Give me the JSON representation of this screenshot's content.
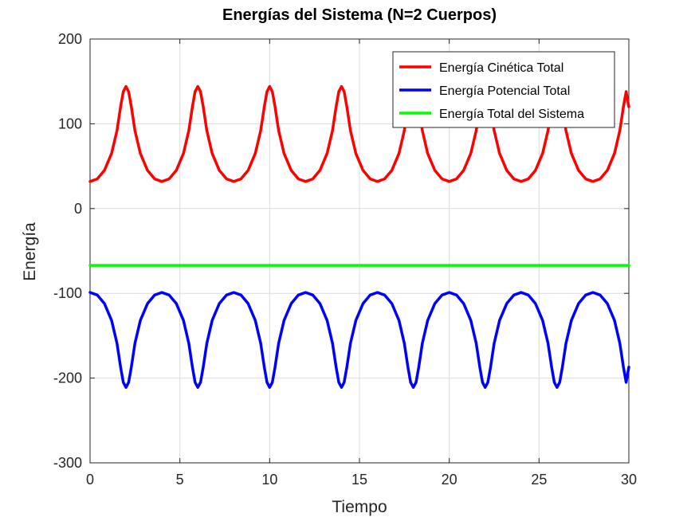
{
  "chart_data": {
    "type": "line",
    "title": "Energías del Sistema (N=2 Cuerpos)",
    "xlabel": "Tiempo",
    "ylabel": "Energía",
    "xlim": [
      0,
      30
    ],
    "ylim": [
      -300,
      200
    ],
    "xticks": [
      0,
      5,
      10,
      15,
      20,
      25,
      30
    ],
    "xtick_labels": [
      "0",
      "5",
      "10",
      "15",
      "20",
      "25",
      "30"
    ],
    "yticks": [
      -300,
      -200,
      -100,
      0,
      100,
      200
    ],
    "ytick_labels": [
      "-300",
      "-200",
      "-100",
      "0",
      "100",
      "200"
    ],
    "grid": true,
    "legend_position": "top-right",
    "series": [
      {
        "name": "Energía Cinética Total",
        "color": "#ff0000",
        "x": [
          0,
          0.4,
          0.8,
          1.2,
          1.5,
          1.7,
          1.85,
          2.0,
          2.15,
          2.3,
          2.5,
          2.8,
          3.2,
          3.6,
          4.0,
          4.4,
          4.8,
          5.2,
          5.5,
          5.7,
          5.85,
          6.0,
          6.15,
          6.3,
          6.5,
          6.8,
          7.2,
          7.6,
          8.0,
          8.4,
          8.8,
          9.2,
          9.5,
          9.7,
          9.85,
          10.0,
          10.15,
          10.3,
          10.5,
          10.8,
          11.2,
          11.6,
          12.0,
          12.4,
          12.8,
          13.2,
          13.5,
          13.7,
          13.85,
          14.0,
          14.15,
          14.3,
          14.5,
          14.8,
          15.2,
          15.6,
          16.0,
          16.4,
          16.8,
          17.2,
          17.5,
          17.7,
          17.85,
          18.0,
          18.15,
          18.3,
          18.5,
          18.8,
          19.2,
          19.6,
          20.0,
          20.4,
          20.8,
          21.2,
          21.5,
          21.7,
          21.85,
          22.0,
          22.15,
          22.3,
          22.5,
          22.8,
          23.2,
          23.6,
          24.0,
          24.4,
          24.8,
          25.2,
          25.5,
          25.7,
          25.85,
          26.0,
          26.15,
          26.3,
          26.5,
          26.8,
          27.2,
          27.6,
          28.0,
          28.4,
          28.8,
          29.2,
          29.5,
          29.7,
          29.85,
          30.0
        ],
        "y": [
          32,
          35,
          45,
          65,
          92,
          120,
          138,
          144,
          138,
          120,
          92,
          65,
          45,
          35,
          32,
          35,
          45,
          65,
          92,
          120,
          138,
          144,
          138,
          120,
          92,
          65,
          45,
          35,
          32,
          35,
          45,
          65,
          92,
          120,
          138,
          144,
          138,
          120,
          92,
          65,
          45,
          35,
          32,
          35,
          45,
          65,
          92,
          120,
          138,
          144,
          138,
          120,
          92,
          65,
          45,
          35,
          32,
          35,
          45,
          65,
          92,
          120,
          138,
          144,
          138,
          120,
          92,
          65,
          45,
          35,
          32,
          35,
          45,
          65,
          92,
          120,
          138,
          144,
          138,
          120,
          92,
          65,
          45,
          35,
          32,
          35,
          45,
          65,
          92,
          120,
          138,
          144,
          138,
          120,
          92,
          65,
          45,
          35,
          32,
          35,
          45,
          65,
          92,
          120,
          138,
          120
        ]
      },
      {
        "name": "Energía Potencial Total",
        "color": "#0000ff",
        "x": [
          0,
          0.4,
          0.8,
          1.2,
          1.5,
          1.7,
          1.85,
          2.0,
          2.15,
          2.3,
          2.5,
          2.8,
          3.2,
          3.6,
          4.0,
          4.4,
          4.8,
          5.2,
          5.5,
          5.7,
          5.85,
          6.0,
          6.15,
          6.3,
          6.5,
          6.8,
          7.2,
          7.6,
          8.0,
          8.4,
          8.8,
          9.2,
          9.5,
          9.7,
          9.85,
          10.0,
          10.15,
          10.3,
          10.5,
          10.8,
          11.2,
          11.6,
          12.0,
          12.4,
          12.8,
          13.2,
          13.5,
          13.7,
          13.85,
          14.0,
          14.15,
          14.3,
          14.5,
          14.8,
          15.2,
          15.6,
          16.0,
          16.4,
          16.8,
          17.2,
          17.5,
          17.7,
          17.85,
          18.0,
          18.15,
          18.3,
          18.5,
          18.8,
          19.2,
          19.6,
          20.0,
          20.4,
          20.8,
          21.2,
          21.5,
          21.7,
          21.85,
          22.0,
          22.15,
          22.3,
          22.5,
          22.8,
          23.2,
          23.6,
          24.0,
          24.4,
          24.8,
          25.2,
          25.5,
          25.7,
          25.85,
          26.0,
          26.15,
          26.3,
          26.5,
          26.8,
          27.2,
          27.6,
          28.0,
          28.4,
          28.8,
          29.2,
          29.5,
          29.7,
          29.85,
          30.0
        ],
        "y": [
          -99,
          -102,
          -112,
          -132,
          -159,
          -187,
          -205,
          -211,
          -205,
          -187,
          -159,
          -132,
          -112,
          -102,
          -99,
          -102,
          -112,
          -132,
          -159,
          -187,
          -205,
          -211,
          -205,
          -187,
          -159,
          -132,
          -112,
          -102,
          -99,
          -102,
          -112,
          -132,
          -159,
          -187,
          -205,
          -211,
          -205,
          -187,
          -159,
          -132,
          -112,
          -102,
          -99,
          -102,
          -112,
          -132,
          -159,
          -187,
          -205,
          -211,
          -205,
          -187,
          -159,
          -132,
          -112,
          -102,
          -99,
          -102,
          -112,
          -132,
          -159,
          -187,
          -205,
          -211,
          -205,
          -187,
          -159,
          -132,
          -112,
          -102,
          -99,
          -102,
          -112,
          -132,
          -159,
          -187,
          -205,
          -211,
          -205,
          -187,
          -159,
          -132,
          -112,
          -102,
          -99,
          -102,
          -112,
          -132,
          -159,
          -187,
          -205,
          -211,
          -205,
          -187,
          -159,
          -132,
          -112,
          -102,
          -99,
          -102,
          -112,
          -132,
          -159,
          -187,
          -205,
          -187
        ]
      },
      {
        "name": "Energía Total del Sistema",
        "color": "#00ff00",
        "x": [
          0,
          30
        ],
        "y": [
          -67,
          -67
        ]
      }
    ]
  }
}
